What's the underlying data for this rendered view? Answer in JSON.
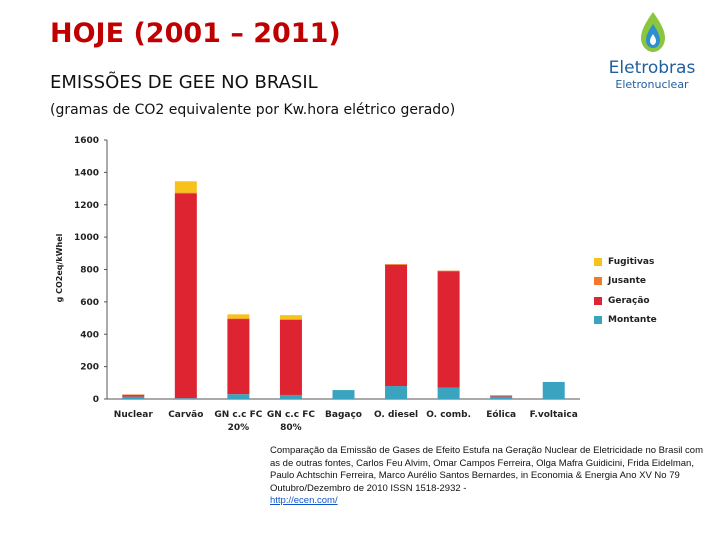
{
  "slide": {
    "title": "HOJE (2001 – 2011)",
    "subtitle": "EMISSÕES DE GEE NO BRASIL",
    "subtitle2": "(gramas de CO2 equivalente por Kw.hora elétrico gerado)"
  },
  "logo": {
    "name": "Eletrobras",
    "sub": "Eletronuclear"
  },
  "citation": {
    "text": "Comparação da Emissão de Gases de Efeito Estufa na Geração Nuclear de Eletricidade no Brasil com as de outras fontes, Carlos Feu Alvim, Omar Campos Ferreira, Olga Mafra Guidicini, Frida Eidelman, Paulo Achtschin Ferreira, Marco Aurélio Santos Bernardes, in Economia & Energia Ano XV No 79 Outubro/Dezembro de 2010 ISSN 1518-2932 -",
    "link": "http://ecen.com/"
  },
  "colors": {
    "fugitivas": "#f8c21c",
    "jusante": "#f07a28",
    "geracao": "#dd2430",
    "montante": "#3aa3c0",
    "title": "#c00000",
    "logo": "#1f5f9e"
  },
  "chart_data": {
    "type": "bar",
    "stacked": true,
    "ylabel": "g CO2eq/kWhel",
    "ylim": [
      0,
      1600
    ],
    "yticks": [
      0,
      200,
      400,
      600,
      800,
      1000,
      1200,
      1400,
      1600
    ],
    "grid": false,
    "legend_position": "right",
    "categories": [
      [
        "Nuclear"
      ],
      [
        "Carvão"
      ],
      [
        "GN c.c FC",
        "20%"
      ],
      [
        "GN c.c FC",
        "80%"
      ],
      [
        "Bagaço"
      ],
      [
        "O. diesel"
      ],
      [
        "O. comb."
      ],
      [
        "Eólica"
      ],
      [
        "F.voltaica"
      ]
    ],
    "series": [
      {
        "name": "Montante",
        "key": "montante",
        "values": [
          15,
          5,
          30,
          25,
          55,
          80,
          70,
          15,
          105
        ]
      },
      {
        "name": "Geração",
        "key": "geracao",
        "values": [
          10,
          1265,
          465,
          465,
          0,
          750,
          720,
          5,
          0
        ]
      },
      {
        "name": "Jusante",
        "key": "jusante",
        "values": [
          3,
          5,
          3,
          3,
          0,
          3,
          3,
          3,
          0
        ]
      },
      {
        "name": "Fugitivas",
        "key": "fugitivas",
        "values": [
          0,
          70,
          25,
          25,
          0,
          0,
          0,
          0,
          0
        ]
      }
    ],
    "legend_order": [
      "Fugitivas",
      "Jusante",
      "Geração",
      "Montante"
    ]
  }
}
